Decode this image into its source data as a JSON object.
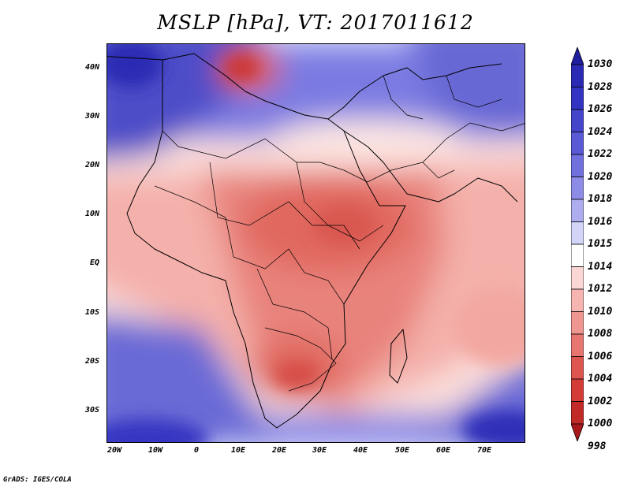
{
  "title": "MSLP [hPa], VT: 2017011612",
  "footer": "GrADS: IGES/COLA",
  "map": {
    "region": "Africa and Middle East",
    "lat_labels": [
      "40N",
      "30N",
      "20N",
      "10N",
      "EQ",
      "10S",
      "20S",
      "30S"
    ],
    "lon_labels": [
      "20W",
      "10W",
      "0",
      "10E",
      "20E",
      "30E",
      "40E",
      "50E",
      "60E",
      "70E"
    ]
  },
  "colorbar": {
    "levels": [
      "1030",
      "1028",
      "1026",
      "1024",
      "1022",
      "1020",
      "1018",
      "1016",
      "1015",
      "1014",
      "1012",
      "1010",
      "1008",
      "1006",
      "1004",
      "1002",
      "1000",
      "998"
    ],
    "colors": [
      "#1e1e9e",
      "#2a2ab4",
      "#3434c2",
      "#4545cc",
      "#5a5ad6",
      "#7070de",
      "#8c8ce6",
      "#adadf0",
      "#d2d4f8",
      "#ffffff",
      "#fad7d4",
      "#f6b5b0",
      "#ef9690",
      "#e6766f",
      "#dd5650",
      "#d43c37",
      "#c22a27",
      "#a8181a"
    ]
  }
}
